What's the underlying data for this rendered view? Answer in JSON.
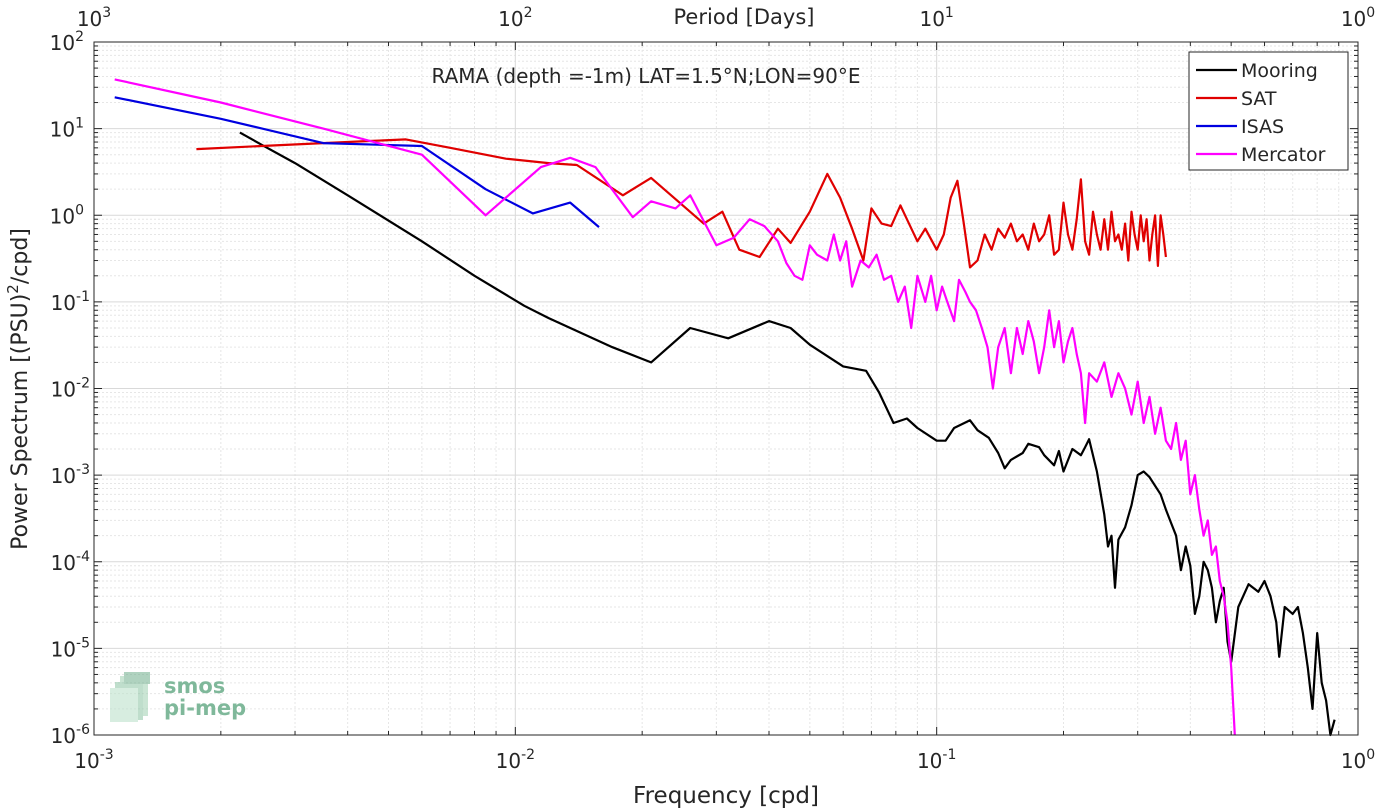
{
  "chart_data": {
    "type": "line",
    "title": "RAMA (depth =-1m) LAT=1.5°N;LON=90°E",
    "xlabel": "Frequency [cpd]",
    "ylabel_pre": "Power Spectrum [(PSU)",
    "ylabel_sup": "2",
    "ylabel_post": "/cpd]",
    "top_xlabel": "Period [Days]",
    "x_scale": "log",
    "y_scale": "log",
    "xlim": [
      0.001,
      1
    ],
    "ylim": [
      1e-06,
      100
    ],
    "grid": true,
    "legend_position": "top-right",
    "x_ticks": [
      {
        "value": 0.001,
        "base": "10",
        "exp": "-3"
      },
      {
        "value": 0.01,
        "base": "10",
        "exp": "-2"
      },
      {
        "value": 0.1,
        "base": "10",
        "exp": "-1"
      },
      {
        "value": 1,
        "base": "10",
        "exp": "0"
      }
    ],
    "y_ticks": [
      {
        "value": 1e-06,
        "base": "10",
        "exp": "-6"
      },
      {
        "value": 1e-05,
        "base": "10",
        "exp": "-5"
      },
      {
        "value": 0.0001,
        "base": "10",
        "exp": "-4"
      },
      {
        "value": 0.001,
        "base": "10",
        "exp": "-3"
      },
      {
        "value": 0.01,
        "base": "10",
        "exp": "-2"
      },
      {
        "value": 0.1,
        "base": "10",
        "exp": "-1"
      },
      {
        "value": 1,
        "base": "10",
        "exp": "0"
      },
      {
        "value": 10,
        "base": "10",
        "exp": "1"
      },
      {
        "value": 100,
        "base": "10",
        "exp": "2"
      }
    ],
    "top_ticks": [
      {
        "value": 0.001,
        "base": "10",
        "exp": "3"
      },
      {
        "value": 0.01,
        "base": "10",
        "exp": "2"
      },
      {
        "value": 0.1,
        "base": "10",
        "exp": "1"
      },
      {
        "value": 1,
        "base": "10",
        "exp": "0"
      }
    ],
    "series": [
      {
        "name": "Mooring",
        "color": "#000000",
        "points": [
          [
            0.00222,
            9.0
          ],
          [
            0.0025,
            6.5
          ],
          [
            0.003,
            4.0
          ],
          [
            0.004,
            1.7
          ],
          [
            0.006,
            0.5
          ],
          [
            0.008,
            0.2
          ],
          [
            0.0105,
            0.09
          ],
          [
            0.012,
            0.065
          ],
          [
            0.017,
            0.03
          ],
          [
            0.021,
            0.02
          ],
          [
            0.026,
            0.05
          ],
          [
            0.032,
            0.038
          ],
          [
            0.04,
            0.06
          ],
          [
            0.045,
            0.05
          ],
          [
            0.05,
            0.032
          ],
          [
            0.06,
            0.018
          ],
          [
            0.068,
            0.016
          ],
          [
            0.073,
            0.009
          ],
          [
            0.079,
            0.004
          ],
          [
            0.085,
            0.0045
          ],
          [
            0.09,
            0.0035
          ],
          [
            0.1,
            0.0025
          ],
          [
            0.105,
            0.0025
          ],
          [
            0.11,
            0.0035
          ],
          [
            0.12,
            0.0043
          ],
          [
            0.125,
            0.0033
          ],
          [
            0.133,
            0.0027
          ],
          [
            0.14,
            0.0018
          ],
          [
            0.145,
            0.0012
          ],
          [
            0.15,
            0.0015
          ],
          [
            0.16,
            0.0018
          ],
          [
            0.165,
            0.0023
          ],
          [
            0.175,
            0.0021
          ],
          [
            0.18,
            0.0017
          ],
          [
            0.19,
            0.0013
          ],
          [
            0.195,
            0.0019
          ],
          [
            0.2,
            0.0011
          ],
          [
            0.21,
            0.002
          ],
          [
            0.22,
            0.0017
          ],
          [
            0.225,
            0.0021
          ],
          [
            0.23,
            0.0026
          ],
          [
            0.24,
            0.0011
          ],
          [
            0.25,
            0.00035
          ],
          [
            0.255,
            0.00015
          ],
          [
            0.26,
            0.0002
          ],
          [
            0.265,
            5e-05
          ],
          [
            0.27,
            0.00018
          ],
          [
            0.28,
            0.00025
          ],
          [
            0.29,
            0.00045
          ],
          [
            0.3,
            0.001
          ],
          [
            0.31,
            0.0011
          ],
          [
            0.32,
            0.00095
          ],
          [
            0.34,
            0.0006
          ],
          [
            0.35,
            0.0004
          ],
          [
            0.36,
            0.00028
          ],
          [
            0.37,
            0.0002
          ],
          [
            0.38,
            8e-05
          ],
          [
            0.39,
            0.00015
          ],
          [
            0.4,
            9e-05
          ],
          [
            0.41,
            2.5e-05
          ],
          [
            0.42,
            4e-05
          ],
          [
            0.43,
            0.0001
          ],
          [
            0.44,
            8e-05
          ],
          [
            0.45,
            5e-05
          ],
          [
            0.46,
            2e-05
          ],
          [
            0.47,
            3.5e-05
          ],
          [
            0.48,
            5e-05
          ],
          [
            0.49,
            1.2e-05
          ],
          [
            0.5,
            7e-06
          ],
          [
            0.52,
            3e-05
          ],
          [
            0.55,
            5.5e-05
          ],
          [
            0.58,
            4.5e-05
          ],
          [
            0.6,
            6e-05
          ],
          [
            0.62,
            4e-05
          ],
          [
            0.64,
            2e-05
          ],
          [
            0.65,
            8e-06
          ],
          [
            0.67,
            3e-05
          ],
          [
            0.7,
            2.5e-05
          ],
          [
            0.72,
            3e-05
          ],
          [
            0.74,
            1.5e-05
          ],
          [
            0.76,
            6e-06
          ],
          [
            0.78,
            2e-06
          ],
          [
            0.8,
            1.5e-05
          ],
          [
            0.82,
            4e-06
          ],
          [
            0.84,
            2.5e-06
          ],
          [
            0.86,
            1e-06
          ],
          [
            0.88,
            1.5e-06
          ]
        ]
      },
      {
        "name": "SAT",
        "color": "#e00000",
        "points": [
          [
            0.00175,
            5.8
          ],
          [
            0.0025,
            6.3
          ],
          [
            0.0035,
            6.8
          ],
          [
            0.0045,
            7.2
          ],
          [
            0.0055,
            7.5
          ],
          [
            0.007,
            6.0
          ],
          [
            0.0095,
            4.5
          ],
          [
            0.012,
            4.0
          ],
          [
            0.014,
            3.8
          ],
          [
            0.018,
            1.7
          ],
          [
            0.021,
            2.7
          ],
          [
            0.028,
            0.8
          ],
          [
            0.031,
            1.1
          ],
          [
            0.034,
            0.4
          ],
          [
            0.038,
            0.33
          ],
          [
            0.042,
            0.7
          ],
          [
            0.045,
            0.48
          ],
          [
            0.05,
            1.1
          ],
          [
            0.055,
            3.0
          ],
          [
            0.059,
            1.6
          ],
          [
            0.063,
            0.7
          ],
          [
            0.067,
            0.3
          ],
          [
            0.07,
            1.2
          ],
          [
            0.074,
            0.8
          ],
          [
            0.078,
            0.75
          ],
          [
            0.082,
            1.3
          ],
          [
            0.085,
            0.9
          ],
          [
            0.09,
            0.5
          ],
          [
            0.094,
            0.7
          ],
          [
            0.1,
            0.4
          ],
          [
            0.104,
            0.6
          ],
          [
            0.108,
            1.6
          ],
          [
            0.112,
            2.5
          ],
          [
            0.116,
            0.8
          ],
          [
            0.12,
            0.25
          ],
          [
            0.125,
            0.3
          ],
          [
            0.13,
            0.6
          ],
          [
            0.135,
            0.4
          ],
          [
            0.14,
            0.7
          ],
          [
            0.145,
            0.55
          ],
          [
            0.15,
            0.8
          ],
          [
            0.155,
            0.5
          ],
          [
            0.16,
            0.6
          ],
          [
            0.165,
            0.4
          ],
          [
            0.17,
            0.8
          ],
          [
            0.175,
            0.5
          ],
          [
            0.18,
            0.6
          ],
          [
            0.185,
            1.0
          ],
          [
            0.19,
            0.35
          ],
          [
            0.195,
            0.4
          ],
          [
            0.2,
            1.4
          ],
          [
            0.205,
            0.6
          ],
          [
            0.21,
            0.4
          ],
          [
            0.215,
            0.9
          ],
          [
            0.22,
            2.6
          ],
          [
            0.225,
            0.5
          ],
          [
            0.23,
            0.35
          ],
          [
            0.235,
            1.1
          ],
          [
            0.24,
            0.6
          ],
          [
            0.245,
            0.4
          ],
          [
            0.25,
            0.9
          ],
          [
            0.255,
            0.4
          ],
          [
            0.26,
            1.1
          ],
          [
            0.265,
            0.5
          ],
          [
            0.27,
            0.6
          ],
          [
            0.275,
            0.4
          ],
          [
            0.28,
            0.8
          ],
          [
            0.285,
            0.3
          ],
          [
            0.29,
            1.1
          ],
          [
            0.295,
            0.6
          ],
          [
            0.3,
            0.4
          ],
          [
            0.305,
            1.0
          ],
          [
            0.31,
            0.5
          ],
          [
            0.315,
            0.9
          ],
          [
            0.32,
            0.3
          ],
          [
            0.325,
            0.6
          ],
          [
            0.33,
            1.0
          ],
          [
            0.335,
            0.26
          ],
          [
            0.34,
            1.0
          ],
          [
            0.345,
            0.6
          ],
          [
            0.35,
            0.33
          ]
        ]
      },
      {
        "name": "ISAS",
        "color": "#0000e0",
        "points": [
          [
            0.00112,
            23
          ],
          [
            0.002,
            13
          ],
          [
            0.0035,
            6.8
          ],
          [
            0.006,
            6.3
          ],
          [
            0.0085,
            2.0
          ],
          [
            0.011,
            1.05
          ],
          [
            0.0135,
            1.4
          ],
          [
            0.0158,
            0.73
          ]
        ]
      },
      {
        "name": "Mercator",
        "color": "#ff00ff",
        "points": [
          [
            0.00112,
            37
          ],
          [
            0.002,
            20
          ],
          [
            0.0035,
            10
          ],
          [
            0.006,
            5.0
          ],
          [
            0.0085,
            1.0
          ],
          [
            0.0095,
            1.6
          ],
          [
            0.0115,
            3.6
          ],
          [
            0.0135,
            4.6
          ],
          [
            0.0155,
            3.6
          ],
          [
            0.019,
            0.95
          ],
          [
            0.021,
            1.45
          ],
          [
            0.024,
            1.2
          ],
          [
            0.026,
            1.7
          ],
          [
            0.03,
            0.45
          ],
          [
            0.033,
            0.55
          ],
          [
            0.036,
            0.9
          ],
          [
            0.039,
            0.75
          ],
          [
            0.042,
            0.5
          ],
          [
            0.044,
            0.28
          ],
          [
            0.046,
            0.2
          ],
          [
            0.048,
            0.18
          ],
          [
            0.05,
            0.45
          ],
          [
            0.052,
            0.35
          ],
          [
            0.055,
            0.3
          ],
          [
            0.057,
            0.6
          ],
          [
            0.059,
            0.3
          ],
          [
            0.061,
            0.5
          ],
          [
            0.063,
            0.15
          ],
          [
            0.066,
            0.3
          ],
          [
            0.069,
            0.25
          ],
          [
            0.072,
            0.35
          ],
          [
            0.075,
            0.18
          ],
          [
            0.078,
            0.2
          ],
          [
            0.081,
            0.1
          ],
          [
            0.084,
            0.15
          ],
          [
            0.087,
            0.05
          ],
          [
            0.09,
            0.2
          ],
          [
            0.094,
            0.1
          ],
          [
            0.097,
            0.2
          ],
          [
            0.1,
            0.08
          ],
          [
            0.103,
            0.15
          ],
          [
            0.106,
            0.1
          ],
          [
            0.11,
            0.06
          ],
          [
            0.113,
            0.18
          ],
          [
            0.117,
            0.13
          ],
          [
            0.12,
            0.1
          ],
          [
            0.124,
            0.08
          ],
          [
            0.128,
            0.05
          ],
          [
            0.132,
            0.03
          ],
          [
            0.136,
            0.01
          ],
          [
            0.14,
            0.03
          ],
          [
            0.145,
            0.05
          ],
          [
            0.15,
            0.015
          ],
          [
            0.155,
            0.05
          ],
          [
            0.16,
            0.025
          ],
          [
            0.165,
            0.06
          ],
          [
            0.17,
            0.035
          ],
          [
            0.175,
            0.015
          ],
          [
            0.18,
            0.03
          ],
          [
            0.185,
            0.08
          ],
          [
            0.19,
            0.03
          ],
          [
            0.195,
            0.06
          ],
          [
            0.2,
            0.02
          ],
          [
            0.205,
            0.035
          ],
          [
            0.21,
            0.05
          ],
          [
            0.215,
            0.025
          ],
          [
            0.22,
            0.015
          ],
          [
            0.225,
            0.004
          ],
          [
            0.23,
            0.015
          ],
          [
            0.24,
            0.012
          ],
          [
            0.25,
            0.02
          ],
          [
            0.26,
            0.008
          ],
          [
            0.27,
            0.015
          ],
          [
            0.28,
            0.01
          ],
          [
            0.29,
            0.005
          ],
          [
            0.3,
            0.012
          ],
          [
            0.31,
            0.004
          ],
          [
            0.32,
            0.008
          ],
          [
            0.33,
            0.003
          ],
          [
            0.34,
            0.006
          ],
          [
            0.35,
            0.0025
          ],
          [
            0.36,
            0.002
          ],
          [
            0.37,
            0.004
          ],
          [
            0.38,
            0.0015
          ],
          [
            0.39,
            0.0025
          ],
          [
            0.4,
            0.0006
          ],
          [
            0.41,
            0.001
          ],
          [
            0.42,
            0.0004
          ],
          [
            0.43,
            0.0002
          ],
          [
            0.44,
            0.0003
          ],
          [
            0.45,
            0.00012
          ],
          [
            0.46,
            0.00015
          ],
          [
            0.47,
            6e-05
          ],
          [
            0.48,
            4e-05
          ],
          [
            0.49,
            2e-05
          ],
          [
            0.5,
            6e-06
          ],
          [
            0.51,
            1e-06
          ]
        ]
      }
    ]
  },
  "watermark": {
    "line1": "smos",
    "line2": "pi-mep",
    "color": "#7fb89a"
  }
}
